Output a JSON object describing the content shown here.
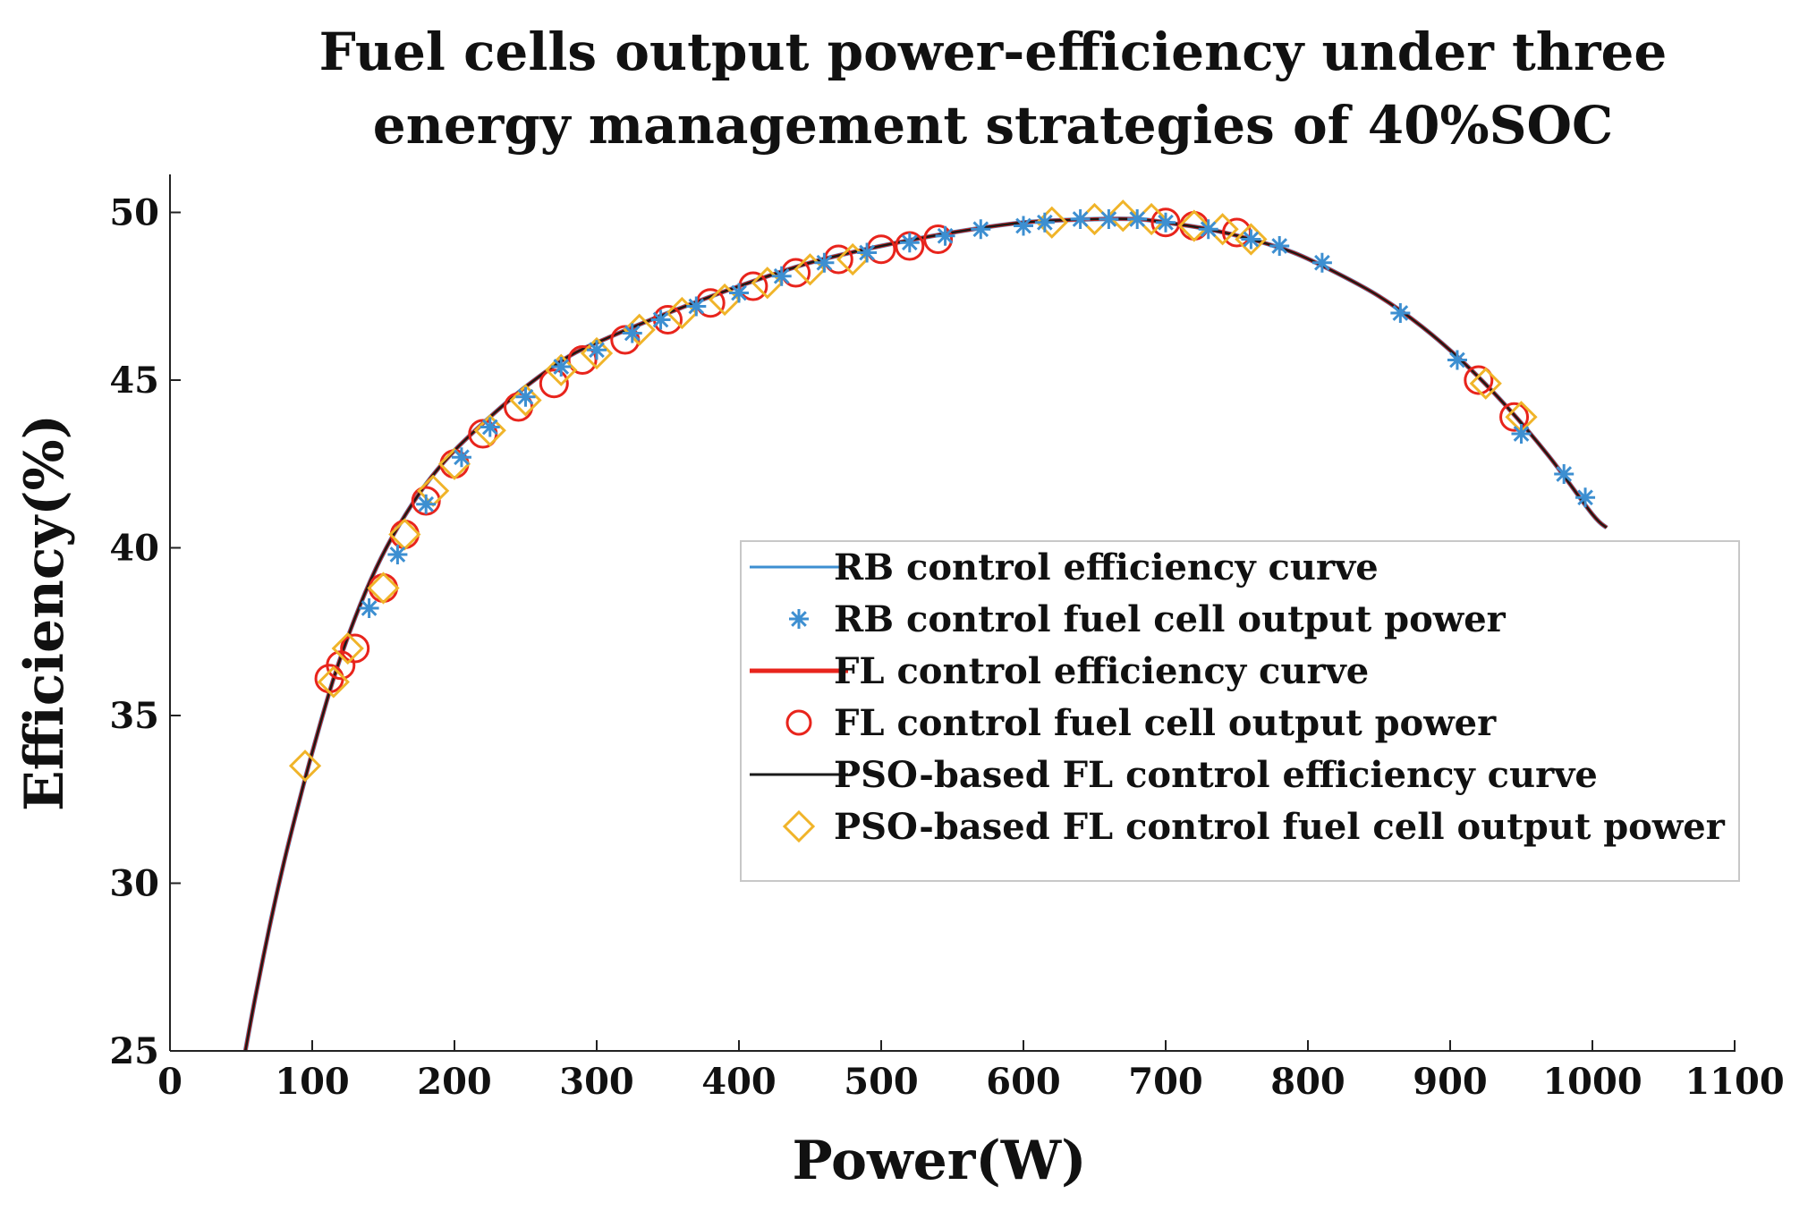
{
  "chart_data": {
    "type": "line",
    "title": "Fuel cells output power-efficiency under three energy management strategies of 40%SOC",
    "title_lines": [
      "Fuel cells output power-efficiency under three",
      "energy management strategies of 40%SOC"
    ],
    "xlabel": "Power(W)",
    "ylabel": "Efficiency(%)",
    "xlim": [
      0,
      1100
    ],
    "ylim": [
      25,
      51
    ],
    "x_ticks": [
      0,
      100,
      200,
      300,
      400,
      500,
      600,
      700,
      800,
      900,
      1000,
      1100
    ],
    "y_ticks": [
      25,
      30,
      35,
      40,
      45,
      50
    ],
    "legend_position": "center-right",
    "curve": {
      "x": [
        53,
        60,
        70,
        80,
        90,
        100,
        115,
        130,
        145,
        160,
        180,
        200,
        225,
        250,
        280,
        310,
        350,
        400,
        450,
        500,
        550,
        600,
        650,
        680,
        700,
        730,
        760,
        790,
        820,
        850,
        880,
        910,
        940,
        970,
        1000,
        1010
      ],
      "y": [
        25.0,
        26.6,
        28.7,
        30.6,
        32.3,
        33.9,
        36.1,
        37.9,
        39.4,
        40.6,
        41.9,
        42.9,
        43.9,
        44.8,
        45.7,
        46.3,
        47.0,
        47.8,
        48.5,
        49.0,
        49.4,
        49.7,
        49.8,
        49.8,
        49.7,
        49.5,
        49.2,
        48.8,
        48.2,
        47.5,
        46.6,
        45.5,
        44.2,
        42.7,
        41.0,
        40.6
      ]
    },
    "series": [
      {
        "name": "RB control efficiency curve",
        "kind": "line",
        "color": "#3d8fd1"
      },
      {
        "name": "RB control fuel cell output power",
        "kind": "asterisk",
        "color": "#3d8fd1",
        "x": [
          140,
          160,
          180,
          205,
          225,
          250,
          275,
          300,
          325,
          345,
          370,
          400,
          430,
          460,
          490,
          520,
          545,
          570,
          600,
          615,
          640,
          660,
          680,
          700,
          730,
          760,
          780,
          810,
          865,
          905,
          950,
          980,
          995
        ],
        "y": [
          38.2,
          39.8,
          41.3,
          42.7,
          43.6,
          44.5,
          45.4,
          45.9,
          46.4,
          46.8,
          47.2,
          47.6,
          48.1,
          48.5,
          48.8,
          49.1,
          49.3,
          49.5,
          49.6,
          49.7,
          49.8,
          49.8,
          49.8,
          49.7,
          49.5,
          49.2,
          49.0,
          48.5,
          47.0,
          45.6,
          43.4,
          42.2,
          41.5
        ]
      },
      {
        "name": "FL control efficiency curve",
        "kind": "line",
        "color": "#e8241c"
      },
      {
        "name": "FL control fuel cell output power",
        "kind": "circle",
        "color": "#e8241c",
        "x": [
          112,
          120,
          130,
          150,
          165,
          180,
          200,
          220,
          245,
          270,
          290,
          320,
          350,
          380,
          410,
          440,
          470,
          500,
          520,
          540,
          700,
          720,
          750,
          920,
          945
        ],
        "y": [
          36.1,
          36.5,
          37.0,
          38.8,
          40.4,
          41.4,
          42.5,
          43.4,
          44.2,
          44.9,
          45.6,
          46.2,
          46.8,
          47.3,
          47.8,
          48.2,
          48.6,
          48.9,
          49.0,
          49.2,
          49.7,
          49.6,
          49.4,
          45.0,
          43.9
        ]
      },
      {
        "name": "PSO-based FL control efficiency curve",
        "kind": "line",
        "color": "#1a1a1a"
      },
      {
        "name": "PSO-based FL control fuel cell output power",
        "kind": "diamond",
        "color": "#f0b429",
        "x": [
          95,
          115,
          125,
          150,
          165,
          185,
          200,
          225,
          250,
          275,
          300,
          330,
          360,
          390,
          420,
          450,
          480,
          620,
          650,
          670,
          690,
          720,
          740,
          760,
          925,
          950
        ],
        "y": [
          33.5,
          36.0,
          37.0,
          38.8,
          40.4,
          41.7,
          42.5,
          43.5,
          44.4,
          45.3,
          45.8,
          46.5,
          47.0,
          47.4,
          47.9,
          48.3,
          48.6,
          49.7,
          49.8,
          49.9,
          49.8,
          49.6,
          49.5,
          49.2,
          44.9,
          43.9
        ]
      }
    ]
  }
}
